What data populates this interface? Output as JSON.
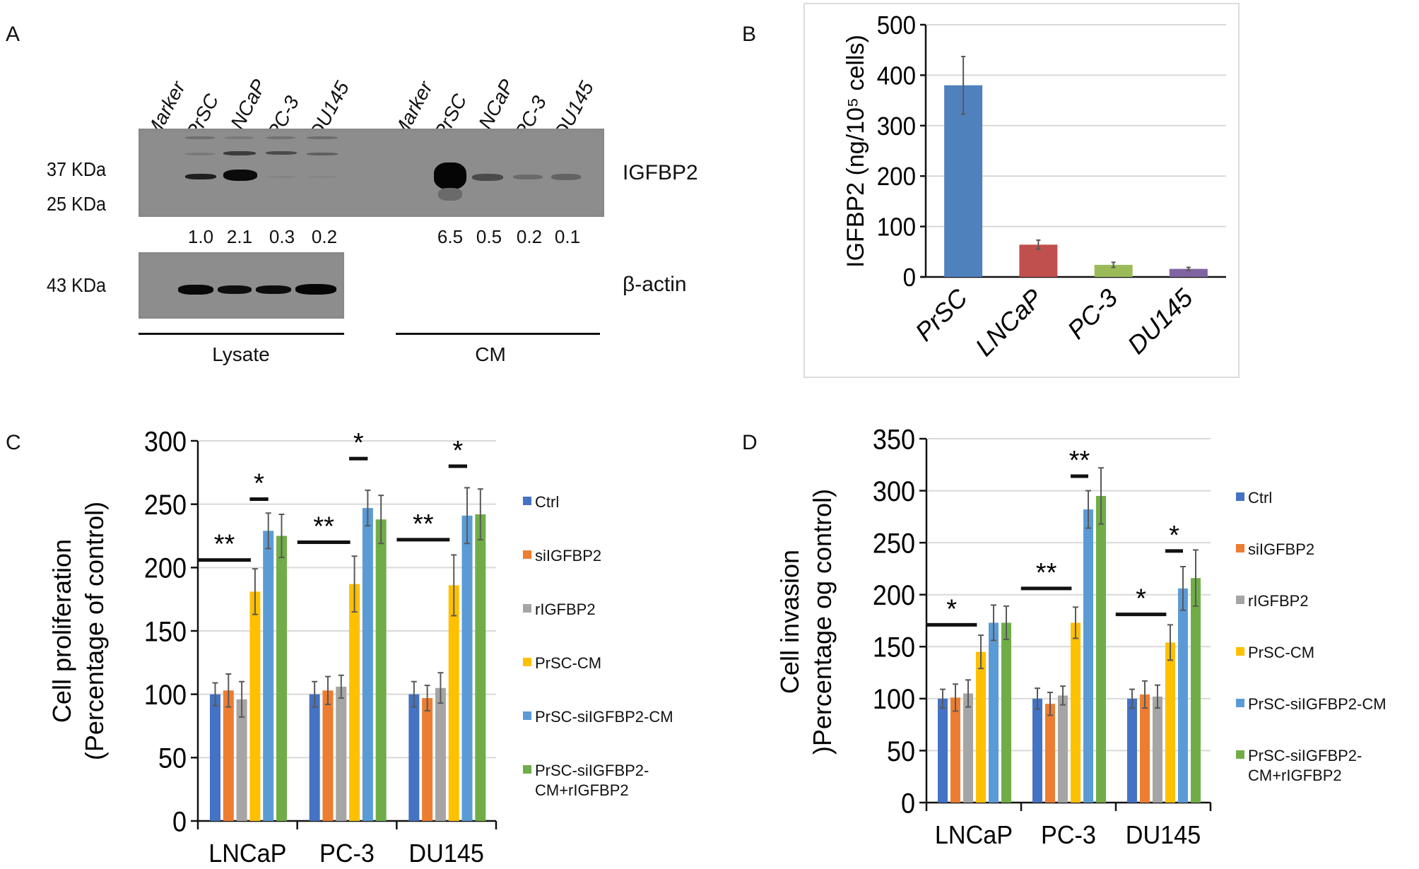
{
  "panels": {
    "a": {
      "label": "A",
      "lysate_lanes": [
        "Marker",
        "PrSC",
        "LNCaP",
        "PC-3",
        "DU145"
      ],
      "cm_lanes": [
        "Marker",
        "PrSC",
        "LNCaP",
        "PC-3",
        "DU145"
      ],
      "marker_igfbp2": [
        "37 KDa",
        "25 KDa"
      ],
      "marker_actin": "43 KDa",
      "target_label": "IGFBP2",
      "loading_label": "β-actin",
      "lysate_quant": [
        "1.0",
        "2.1",
        "0.3",
        "0.2"
      ],
      "cm_quant": [
        "6.5",
        "0.5",
        "0.2",
        "0.1"
      ],
      "lysate_label": "Lysate",
      "cm_label": "CM"
    },
    "b": {
      "label": "B"
    },
    "c": {
      "label": "C"
    },
    "d": {
      "label": "D"
    }
  },
  "chart_data": [
    {
      "id": "b",
      "type": "bar",
      "title": "",
      "xlabel": "",
      "ylabel": "IGFBP2 (ng/10⁵ cells)",
      "ylim": [
        0,
        500
      ],
      "yticks": [
        0,
        100,
        200,
        300,
        400,
        500
      ],
      "grid": true,
      "categories": [
        "PrSC",
        "LNCaP",
        "PC-3",
        "DU145"
      ],
      "values": [
        380,
        64,
        24,
        16
      ],
      "errors": [
        57,
        9,
        5,
        3
      ],
      "colors": [
        "#4f81bd",
        "#c0504d",
        "#9bbb59",
        "#8064a2"
      ]
    },
    {
      "id": "c",
      "type": "bar",
      "title": "",
      "xlabel": "",
      "ylabel": [
        "Cell proliferation",
        "(Percentage of control)"
      ],
      "ylim": [
        0,
        300
      ],
      "yticks": [
        0,
        50,
        100,
        150,
        200,
        250,
        300
      ],
      "grid": true,
      "legend_position": "right",
      "categories": [
        "LNCaP",
        "PC-3",
        "DU145"
      ],
      "series": [
        {
          "name": "Ctrl",
          "color": "#4472c4",
          "values": [
            100,
            100,
            100
          ],
          "errors": [
            9,
            10,
            10
          ]
        },
        {
          "name": "siIGFBP2",
          "color": "#ed7d31",
          "values": [
            103,
            103,
            97
          ],
          "errors": [
            13,
            11,
            10
          ]
        },
        {
          "name": "rIGFBP2",
          "color": "#a5a5a5",
          "values": [
            96,
            106,
            105
          ],
          "errors": [
            14,
            9,
            12
          ]
        },
        {
          "name": "PrSC-CM",
          "color": "#ffc000",
          "values": [
            181,
            187,
            186
          ],
          "errors": [
            18,
            22,
            24
          ]
        },
        {
          "name": "PrSC-siIGFBP2-CM",
          "color": "#5b9bd5",
          "values": [
            229,
            247,
            241
          ],
          "errors": [
            14,
            14,
            22
          ]
        },
        {
          "name": "PrSC-siIGFBP2-CM+rIGFBP2",
          "color": "#70ad47",
          "values": [
            225,
            238,
            242
          ],
          "errors": [
            17,
            19,
            20
          ]
        }
      ],
      "legend_lines": [
        [
          "Ctrl"
        ],
        [
          "siIGFBP2"
        ],
        [
          "rIGFBP2"
        ],
        [
          "PrSC-CM"
        ],
        [
          "PrSC-siIGFBP2-CM"
        ],
        [
          "PrSC-siIGFBP2-",
          "CM+rIGFBP2"
        ]
      ],
      "significance": [
        {
          "group": 0,
          "from": 0,
          "to": 3,
          "y": 206,
          "label": "**"
        },
        {
          "group": 0,
          "from": 3,
          "to": 4,
          "y": 254,
          "label": "*"
        },
        {
          "group": 1,
          "from": 0,
          "to": 3,
          "y": 220,
          "label": "**"
        },
        {
          "group": 1,
          "from": 3,
          "to": 4,
          "y": 286,
          "label": "*"
        },
        {
          "group": 2,
          "from": 0,
          "to": 3,
          "y": 222,
          "label": "**"
        },
        {
          "group": 2,
          "from": 3,
          "to": 4,
          "y": 280,
          "label": "*"
        }
      ]
    },
    {
      "id": "d",
      "type": "bar",
      "title": "",
      "xlabel": "",
      "ylabel": [
        "Cell invasion",
        ")Percentage og control)"
      ],
      "ylim": [
        0,
        350
      ],
      "yticks": [
        0,
        50,
        100,
        150,
        200,
        250,
        300,
        350
      ],
      "grid": true,
      "legend_position": "right",
      "categories": [
        "LNCaP",
        "PC-3",
        "DU145"
      ],
      "series": [
        {
          "name": "Ctrl",
          "color": "#4472c4",
          "values": [
            100,
            100,
            100
          ],
          "errors": [
            9,
            10,
            9
          ]
        },
        {
          "name": "siIGFBP2",
          "color": "#ed7d31",
          "values": [
            101,
            95,
            104
          ],
          "errors": [
            13,
            11,
            13
          ]
        },
        {
          "name": "rIGFBP2",
          "color": "#a5a5a5",
          "values": [
            105,
            103,
            102
          ],
          "errors": [
            13,
            9,
            11
          ]
        },
        {
          "name": "PrSC-CM",
          "color": "#ffc000",
          "values": [
            145,
            173,
            154
          ],
          "errors": [
            16,
            15,
            17
          ]
        },
        {
          "name": "PrSC-siIGFBP2-CM",
          "color": "#5b9bd5",
          "values": [
            173,
            282,
            206
          ],
          "errors": [
            17,
            18,
            21
          ]
        },
        {
          "name": "PrSC-siIGFBP2-CM+rIGFBP2",
          "color": "#70ad47",
          "values": [
            173,
            295,
            216
          ],
          "errors": [
            16,
            27,
            27
          ]
        }
      ],
      "legend_lines": [
        [
          "Ctrl"
        ],
        [
          "siIGFBP2"
        ],
        [
          "rIGFBP2"
        ],
        [
          "PrSC-CM"
        ],
        [
          "PrSC-siIGFBP2-CM"
        ],
        [
          "PrSC-siIGFBP2-",
          "CM+rIGFBP2"
        ]
      ],
      "significance": [
        {
          "group": 0,
          "from": 0,
          "to": 3,
          "y": 171,
          "label": "*"
        },
        {
          "group": 1,
          "from": 0,
          "to": 3,
          "y": 206,
          "label": "**"
        },
        {
          "group": 1,
          "from": 3,
          "to": 4,
          "y": 314,
          "label": "**"
        },
        {
          "group": 2,
          "from": 0,
          "to": 3,
          "y": 181,
          "label": "*"
        },
        {
          "group": 2,
          "from": 3,
          "to": 4,
          "y": 242,
          "label": "*"
        }
      ]
    }
  ]
}
